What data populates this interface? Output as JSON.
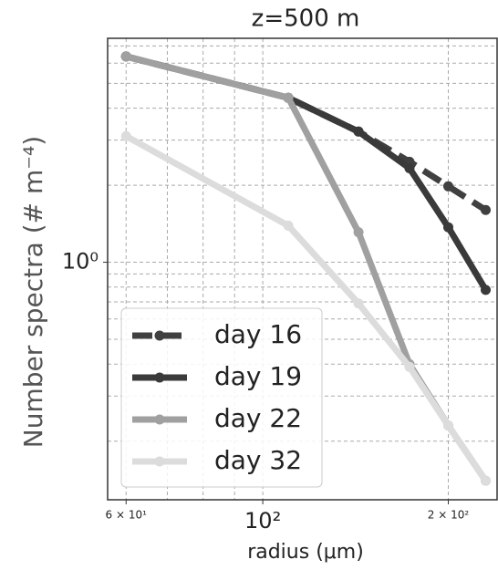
{
  "chart_data": {
    "type": "line",
    "title": "z=500 m",
    "x_label": "radius (μm)",
    "y_label": "Number spectra (# m⁻⁴)",
    "x": [
      60,
      110,
      143,
      173,
      200,
      230
    ],
    "series": [
      {
        "name": "day 16",
        "color": "#404040",
        "linestyle": "dashed",
        "values": [
          6.37,
          4.39,
          3.24,
          2.47,
          1.98,
          1.6
        ]
      },
      {
        "name": "day 19",
        "color": "#3a3a3a",
        "linestyle": "solid",
        "values": [
          6.37,
          4.39,
          3.24,
          2.33,
          1.37,
          0.78
        ]
      },
      {
        "name": "day 22",
        "color": "#a0a0a0",
        "linestyle": "solid",
        "values": [
          6.37,
          4.39,
          1.31,
          0.4,
          0.23,
          0.14
        ]
      },
      {
        "name": "day 32",
        "color": "#dcdcdc",
        "linestyle": "solid",
        "values": [
          3.11,
          1.39,
          0.69,
          0.39,
          0.23,
          0.14
        ]
      }
    ],
    "xlim": [
      56,
      240
    ],
    "ylim": [
      0.118,
      7.5
    ],
    "log_x": true,
    "log_y": true,
    "grid": true,
    "xticks": [
      {
        "value": 60,
        "label": "6 × 10¹"
      },
      {
        "value": 100,
        "label": "10²"
      },
      {
        "value": 200,
        "label": "2 × 10²"
      }
    ],
    "x_minor_ticks": [
      70,
      80,
      90,
      300
    ],
    "yticks": [
      {
        "value": 1,
        "label": "10⁰"
      }
    ],
    "y_minor_ticks": [
      0.2,
      0.3,
      0.4,
      0.5,
      0.6,
      0.7,
      0.8,
      0.9,
      2,
      3,
      4,
      5,
      6,
      7
    ],
    "legend": "lower left"
  }
}
